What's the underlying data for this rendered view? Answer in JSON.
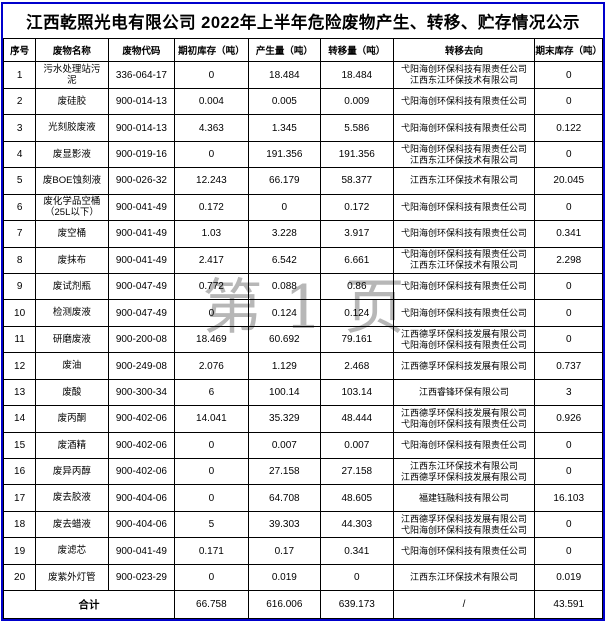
{
  "title": "江西乾照光电有限公司 2022年上半年危险废物产生、转移、贮存情况公示",
  "watermark": {
    "text": "第 1 页",
    "chars": [
      "第",
      "1",
      "页"
    ]
  },
  "colors": {
    "frame_border": "#0000cc",
    "grid_line": "#000000",
    "text": "#000000",
    "watermark": "#9a9a9a"
  },
  "table": {
    "headers": [
      "序号",
      "废物名称",
      "废物代码",
      "期初库存（吨）",
      "产生量（吨）",
      "转移量（吨）",
      "转移去向",
      "期末库存（吨）"
    ],
    "rows": [
      {
        "no": "1",
        "name": "污水处理站污泥",
        "code": "336-064-17",
        "opening": "0",
        "produced": "18.484",
        "transferred": "18.484",
        "destinations": [
          "弋阳海创环保科技有限责任公司",
          "江西东江环保技术有限公司"
        ],
        "closing": "0"
      },
      {
        "no": "2",
        "name": "废硅胶",
        "code": "900-014-13",
        "opening": "0.004",
        "produced": "0.005",
        "transferred": "0.009",
        "destinations": [
          "弋阳海创环保科技有限责任公司"
        ],
        "closing": "0"
      },
      {
        "no": "3",
        "name": "光刻胶废液",
        "code": "900-014-13",
        "opening": "4.363",
        "produced": "1.345",
        "transferred": "5.586",
        "destinations": [
          "弋阳海创环保科技有限责任公司"
        ],
        "closing": "0.122"
      },
      {
        "no": "4",
        "name": "废显影液",
        "code": "900-019-16",
        "opening": "0",
        "produced": "191.356",
        "transferred": "191.356",
        "destinations": [
          "弋阳海创环保科技有限责任公司",
          "江西东江环保技术有限公司"
        ],
        "closing": "0"
      },
      {
        "no": "5",
        "name": "废BOE蚀刻液",
        "code": "900-026-32",
        "opening": "12.243",
        "produced": "66.179",
        "transferred": "58.377",
        "destinations": [
          "江西东江环保技术有限公司"
        ],
        "closing": "20.045"
      },
      {
        "no": "6",
        "name": "废化学品空桶（25L以下）",
        "code": "900-041-49",
        "opening": "0.172",
        "produced": "0",
        "transferred": "0.172",
        "destinations": [
          "弋阳海创环保科技有限责任公司"
        ],
        "closing": "0"
      },
      {
        "no": "7",
        "name": "废空桶",
        "code": "900-041-49",
        "opening": "1.03",
        "produced": "3.228",
        "transferred": "3.917",
        "destinations": [
          "弋阳海创环保科技有限责任公司"
        ],
        "closing": "0.341"
      },
      {
        "no": "8",
        "name": "废抹布",
        "code": "900-041-49",
        "opening": "2.417",
        "produced": "6.542",
        "transferred": "6.661",
        "destinations": [
          "弋阳海创环保科技有限责任公司",
          "江西东江环保技术有限公司"
        ],
        "closing": "2.298"
      },
      {
        "no": "9",
        "name": "废试剂瓶",
        "code": "900-047-49",
        "opening": "0.772",
        "produced": "0.088",
        "transferred": "0.86",
        "destinations": [
          "弋阳海创环保科技有限责任公司"
        ],
        "closing": "0"
      },
      {
        "no": "10",
        "name": "检测废液",
        "code": "900-047-49",
        "opening": "0",
        "produced": "0.124",
        "transferred": "0.124",
        "destinations": [
          "弋阳海创环保科技有限责任公司"
        ],
        "closing": "0"
      },
      {
        "no": "11",
        "name": "研磨废液",
        "code": "900-200-08",
        "opening": "18.469",
        "produced": "60.692",
        "transferred": "79.161",
        "destinations": [
          "江西德孚环保科技发展有限公司",
          "弋阳海创环保科技有限责任公司"
        ],
        "closing": "0"
      },
      {
        "no": "12",
        "name": "废油",
        "code": "900-249-08",
        "opening": "2.076",
        "produced": "1.129",
        "transferred": "2.468",
        "destinations": [
          "江西德孚环保科技发展有限公司"
        ],
        "closing": "0.737"
      },
      {
        "no": "13",
        "name": "废酸",
        "code": "900-300-34",
        "opening": "6",
        "produced": "100.14",
        "transferred": "103.14",
        "destinations": [
          "江西睿锋环保有限公司"
        ],
        "closing": "3"
      },
      {
        "no": "14",
        "name": "废丙酮",
        "code": "900-402-06",
        "opening": "14.041",
        "produced": "35.329",
        "transferred": "48.444",
        "destinations": [
          "江西德孚环保科技发展有限公司",
          "弋阳海创环保科技有限责任公司"
        ],
        "closing": "0.926"
      },
      {
        "no": "15",
        "name": "废酒精",
        "code": "900-402-06",
        "opening": "0",
        "produced": "0.007",
        "transferred": "0.007",
        "destinations": [
          "弋阳海创环保科技有限责任公司"
        ],
        "closing": "0"
      },
      {
        "no": "16",
        "name": "废异丙醇",
        "code": "900-402-06",
        "opening": "0",
        "produced": "27.158",
        "transferred": "27.158",
        "destinations": [
          "江西东江环保技术有限公司",
          "江西德孚环保科技发展有限公司"
        ],
        "closing": "0"
      },
      {
        "no": "17",
        "name": "废去胶液",
        "code": "900-404-06",
        "opening": "0",
        "produced": "64.708",
        "transferred": "48.605",
        "destinations": [
          "福建钰融科技有限公司"
        ],
        "closing": "16.103"
      },
      {
        "no": "18",
        "name": "废去蜡液",
        "code": "900-404-06",
        "opening": "5",
        "produced": "39.303",
        "transferred": "44.303",
        "destinations": [
          "江西德孚环保科技发展有限公司",
          "弋阳海创环保科技有限责任公司"
        ],
        "closing": "0"
      },
      {
        "no": "19",
        "name": "废滤芯",
        "code": "900-041-49",
        "opening": "0.171",
        "produced": "0.17",
        "transferred": "0.341",
        "destinations": [
          "弋阳海创环保科技有限责任公司"
        ],
        "closing": "0"
      },
      {
        "no": "20",
        "name": "废紫外灯管",
        "code": "900-023-29",
        "opening": "0",
        "produced": "0.019",
        "transferred": "0",
        "destinations": [
          "江西东江环保技术有限公司"
        ],
        "closing": "0.019"
      }
    ],
    "total": {
      "label": "合计",
      "opening": "66.758",
      "produced": "616.006",
      "transferred": "639.173",
      "destination": "/",
      "closing": "43.591"
    }
  }
}
